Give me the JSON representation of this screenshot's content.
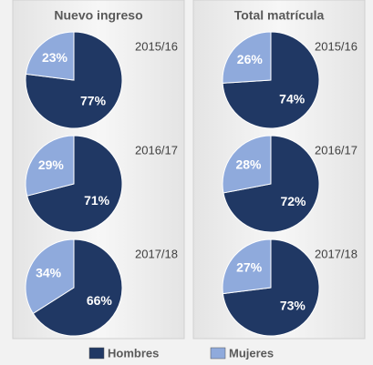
{
  "chart_data": [
    {
      "type": "pie",
      "title": "Nuevo ingreso",
      "pies": [
        {
          "label": "2015/16",
          "values": [
            77,
            23
          ],
          "value_labels": [
            "77%",
            "23%"
          ]
        },
        {
          "label": "2016/17",
          "values": [
            71,
            29
          ],
          "value_labels": [
            "71%",
            "29%"
          ]
        },
        {
          "label": "2017/18",
          "values": [
            66,
            34
          ],
          "value_labels": [
            "66%",
            "34%"
          ]
        }
      ]
    },
    {
      "type": "pie",
      "title": "Total matrícula",
      "pies": [
        {
          "label": "2015/16",
          "values": [
            74,
            26
          ],
          "value_labels": [
            "74%",
            "26%"
          ]
        },
        {
          "label": "2016/17",
          "values": [
            72,
            28
          ],
          "value_labels": [
            "72%",
            "28%"
          ]
        },
        {
          "label": "2017/18",
          "values": [
            73,
            27
          ],
          "value_labels": [
            "73%",
            "27%"
          ]
        }
      ]
    }
  ],
  "legend": {
    "categories": [
      "Hombres",
      "Mujeres"
    ],
    "colors": [
      "#203864",
      "#8faadc"
    ]
  }
}
